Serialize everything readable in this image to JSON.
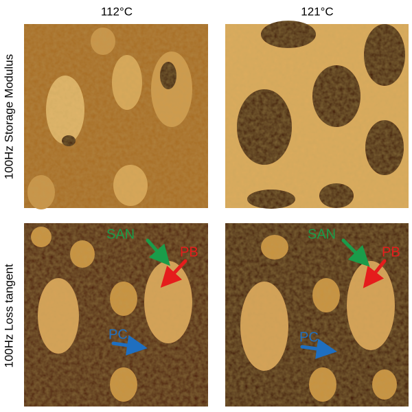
{
  "columns": [
    "112°C",
    "121°C"
  ],
  "rows": [
    "100Hz Storage Modulus",
    "100Hz Loss tangent"
  ],
  "panels": [
    {
      "labels": []
    },
    {
      "labels": []
    },
    {
      "labels": [
        "SAN",
        "PB",
        "PC"
      ]
    },
    {
      "labels": [
        "SAN",
        "PB",
        "PC"
      ]
    }
  ]
}
